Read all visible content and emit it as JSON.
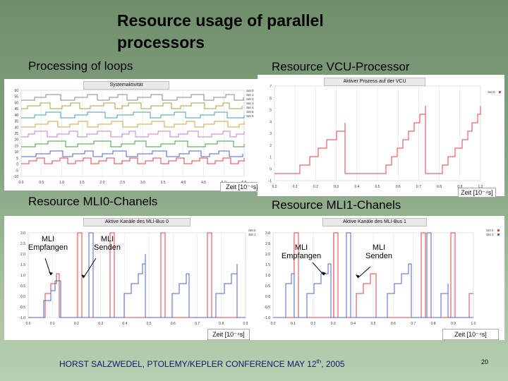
{
  "title": "Resource usage of parallel processors",
  "headings": {
    "loops": "Processing of loops",
    "vcu": "Resource VCU-Processor",
    "mli0": "Resource MLI0-Chanels",
    "mli1": "Resource MLI1-Chanels"
  },
  "panels": {
    "loops": {
      "title": "Systemaktivität",
      "legend": [
        "Set 0",
        "Set 1",
        "Set 2",
        "Set 3",
        "Set 4",
        "Set 5",
        "Set 6"
      ],
      "y_ticks": [
        "60",
        "55",
        "50",
        "45",
        "40",
        "35",
        "30",
        "25",
        "20",
        "15",
        "10",
        "5",
        "0",
        "-5",
        "-10"
      ],
      "x_ticks": [
        "0.0",
        "0.5",
        "1.0",
        "1.5",
        "2.0",
        "2.5",
        "3.0",
        "3.5",
        "4.0",
        "4.5",
        "5.0",
        "5.5"
      ],
      "xlabel": "Zeit [10⁻⁴s]"
    },
    "vcu": {
      "title": "Aktiver Prozess auf der VCU",
      "legend": [
        "Set 0"
      ],
      "y_ticks": [
        "7",
        "6",
        "5",
        "4",
        "3",
        "2",
        "1",
        "0",
        "-1"
      ],
      "x_ticks": [
        "0.0",
        "0.1",
        "0.2",
        "0.3",
        "0.4",
        "0.5",
        "0.6",
        "0.7",
        "0.8",
        "0.9",
        "1.0"
      ],
      "xlabel": "Zeit [10⁻⁴s]"
    },
    "mli0": {
      "title": "Aktive Kanäle des MLI-Bus 0",
      "legend": [
        "Set 0",
        "Set 1"
      ],
      "y_ticks": [
        "3.0",
        "2.5",
        "2.0",
        "1.5",
        "1.0",
        "0.5",
        "0.0",
        "-0.5",
        "-1.0"
      ],
      "x_ticks": [
        "0.0",
        "0.1",
        "0.2",
        "0.3",
        "0.4",
        "0.5",
        "0.6",
        "0.7",
        "0.8",
        "0.9"
      ],
      "xlabel": "Zeit [10⁻⁴s]",
      "annotations": {
        "empfangen": "MLI\nEmpfangen",
        "senden": "MLI\nSenden"
      }
    },
    "mli1": {
      "title": "Aktive Kanäle des MLI-Bus 1",
      "legend": [
        "Set 0",
        "Set 1"
      ],
      "y_ticks": [
        "3.0",
        "2.5",
        "2.0",
        "1.5",
        "1.0",
        "0.5",
        "0.0",
        "-0.5",
        "-1.0"
      ],
      "x_ticks": [
        "0.0",
        "0.1",
        "0.2",
        "0.3",
        "0.4",
        "0.5",
        "0.6",
        "0.7",
        "0.8",
        "0.9",
        "1.0"
      ],
      "xlabel": "Zeit [10⁻⁴s]",
      "annotations": {
        "empfangen": "MLI\nEmpfangen",
        "senden": "MLI\nSenden"
      }
    }
  },
  "footer": {
    "text": "HORST SALZWEDEL, PTOLEMY/KEPLER CONFERENCE MAY 12",
    "sup": "th",
    "year": ", 2005"
  },
  "page_number": "20",
  "colors": {
    "set0": "#e04040",
    "set1": "#5060d0"
  }
}
